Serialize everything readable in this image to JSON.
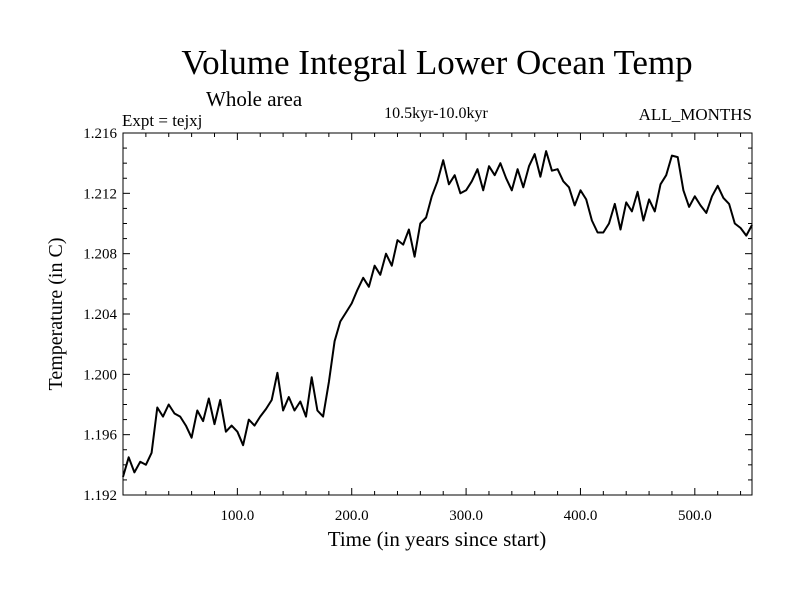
{
  "chart_data": {
    "type": "line",
    "title": "Volume Integral Lower Ocean Temp",
    "subtitle": "Whole area",
    "left_label": "Expt = tejxj",
    "center_label": "10.5kyr-10.0kyr",
    "right_label": "ALL_MONTHS",
    "xlabel": "Time (in years since start)",
    "ylabel": "Temperature (in C)",
    "xlim": [
      0,
      550
    ],
    "ylim": [
      1.192,
      1.216
    ],
    "x_ticks": [
      100,
      200,
      300,
      400,
      500
    ],
    "x_tick_labels": [
      "100.0",
      "200.0",
      "300.0",
      "400.0",
      "500.0"
    ],
    "y_ticks": [
      1.192,
      1.196,
      1.2,
      1.204,
      1.208,
      1.212,
      1.216
    ],
    "y_tick_labels": [
      "1.192",
      "1.196",
      "1.200",
      "1.204",
      "1.208",
      "1.212",
      "1.216"
    ],
    "grid": false,
    "series": [
      {
        "name": "tejxj",
        "x": [
          0,
          5,
          10,
          15,
          20,
          25,
          30,
          35,
          40,
          45,
          50,
          55,
          60,
          65,
          70,
          75,
          80,
          85,
          90,
          95,
          100,
          105,
          110,
          115,
          120,
          125,
          130,
          135,
          140,
          145,
          150,
          155,
          160,
          165,
          170,
          175,
          180,
          185,
          190,
          195,
          200,
          205,
          210,
          215,
          220,
          225,
          230,
          235,
          240,
          245,
          250,
          255,
          260,
          265,
          270,
          275,
          280,
          285,
          290,
          295,
          300,
          305,
          310,
          315,
          320,
          325,
          330,
          335,
          340,
          345,
          350,
          355,
          360,
          365,
          370,
          375,
          380,
          385,
          390,
          395,
          400,
          405,
          410,
          415,
          420,
          425,
          430,
          435,
          440,
          445,
          450,
          455,
          460,
          465,
          470,
          475,
          480,
          485,
          490,
          495,
          500,
          505,
          510,
          515,
          520,
          525,
          530,
          535,
          540,
          545,
          550
        ],
        "values": [
          1.1932,
          1.1945,
          1.1935,
          1.1942,
          1.194,
          1.1948,
          1.1978,
          1.1972,
          1.198,
          1.1974,
          1.1972,
          1.1966,
          1.1958,
          1.1976,
          1.1969,
          1.1984,
          1.1967,
          1.1983,
          1.1962,
          1.1966,
          1.1962,
          1.1953,
          1.197,
          1.1966,
          1.1972,
          1.1977,
          1.1983,
          1.2001,
          1.1976,
          1.1985,
          1.1976,
          1.1982,
          1.1972,
          1.1998,
          1.1976,
          1.1972,
          1.1995,
          1.2022,
          1.2035,
          1.2041,
          1.2047,
          1.2056,
          1.2064,
          1.2058,
          1.2072,
          1.2066,
          1.208,
          1.2072,
          1.2089,
          1.2086,
          1.2096,
          1.2078,
          1.21,
          1.2104,
          1.2118,
          1.2128,
          1.2142,
          1.2126,
          1.2132,
          1.212,
          1.2122,
          1.2128,
          1.2136,
          1.2122,
          1.2138,
          1.2132,
          1.214,
          1.213,
          1.2122,
          1.2136,
          1.2124,
          1.2138,
          1.2146,
          1.2131,
          1.2148,
          1.2135,
          1.2136,
          1.2128,
          1.2124,
          1.2112,
          1.2122,
          1.2116,
          1.2102,
          1.2094,
          1.2094,
          1.21,
          1.2113,
          1.2096,
          1.2114,
          1.2108,
          1.2121,
          1.2102,
          1.2116,
          1.2108,
          1.2126,
          1.2132,
          1.2145,
          1.2144,
          1.2122,
          1.2111,
          1.2118,
          1.2112,
          1.2107,
          1.2118,
          1.2125,
          1.2117,
          1.2113,
          1.21,
          1.2097,
          1.2092,
          1.2099
        ]
      }
    ]
  }
}
